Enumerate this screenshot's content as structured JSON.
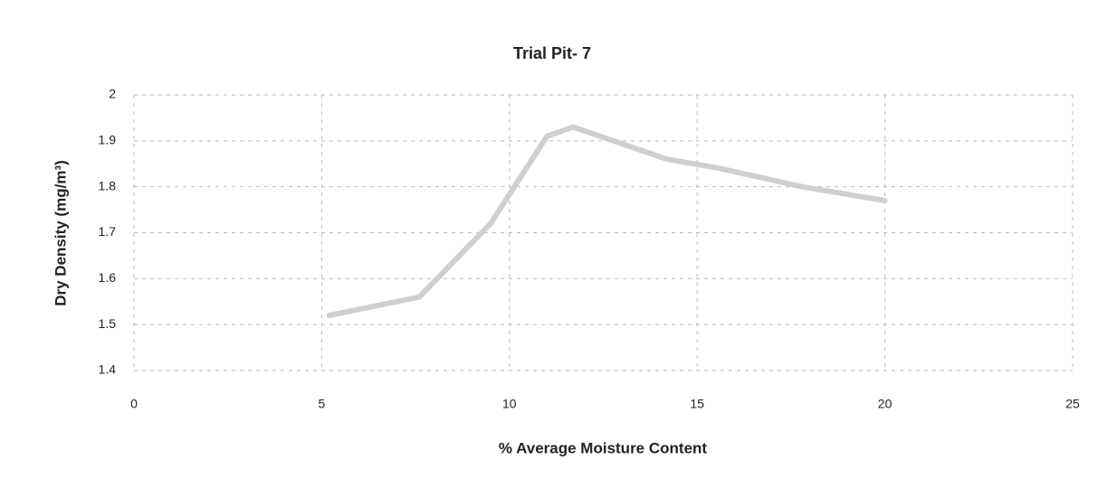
{
  "chart_data": {
    "type": "line",
    "title": "Trial Pit- 7",
    "xlabel": "% Average Moisture Content",
    "ylabel": "Dry Density (mg/m³)",
    "x": [
      5.2,
      7.6,
      9.5,
      11.0,
      11.7,
      14.2,
      15.6,
      17.8,
      20
    ],
    "series": [
      {
        "name": "Dry Density",
        "color": "#cfcfcf",
        "values": [
          1.52,
          1.56,
          1.72,
          1.91,
          1.93,
          1.86,
          1.84,
          1.8,
          1.77
        ]
      }
    ],
    "xlim": [
      0,
      25
    ],
    "xticks": [
      0,
      5,
      10,
      15,
      20,
      25
    ],
    "ylim": [
      1.4,
      2
    ],
    "yticks": [
      1.4,
      1.5,
      1.6,
      1.7,
      1.8,
      1.9,
      2
    ],
    "grid": true
  }
}
